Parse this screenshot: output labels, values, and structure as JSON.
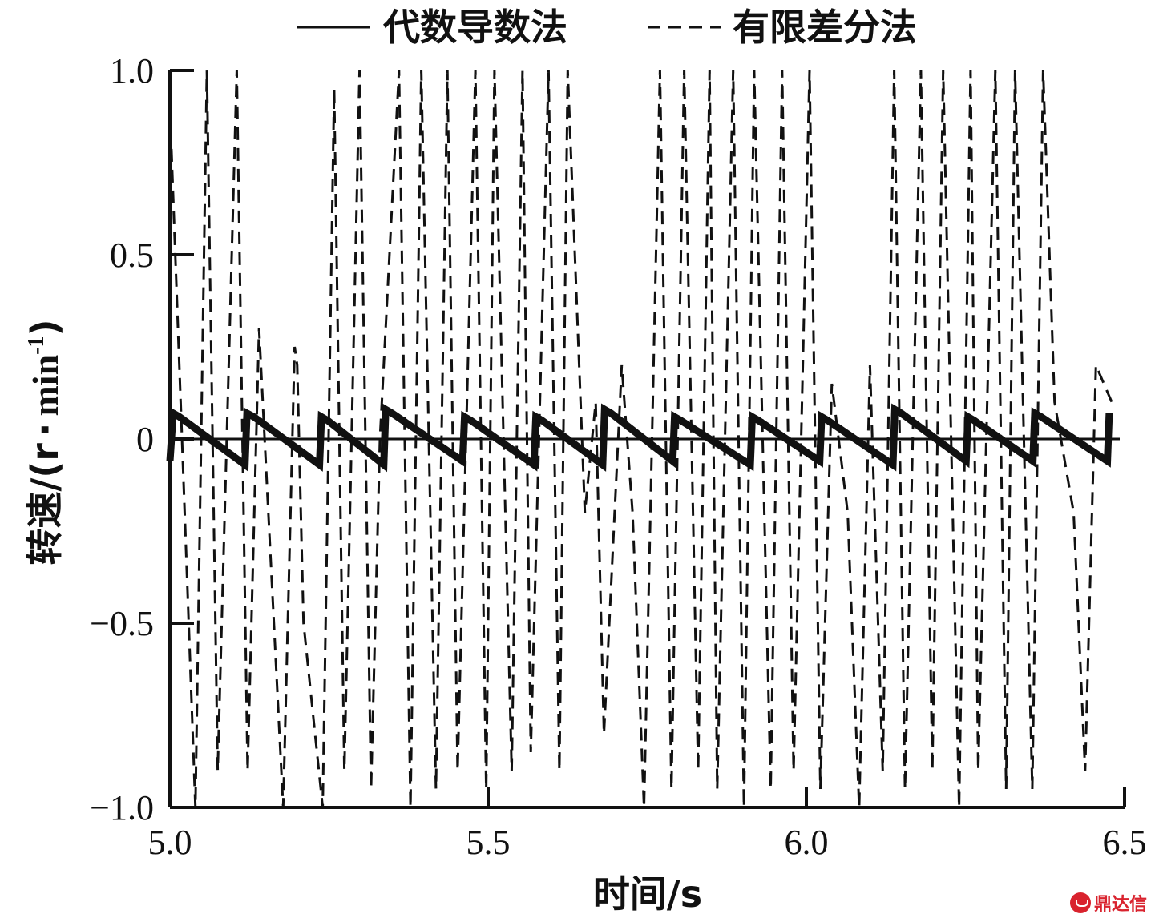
{
  "chart_data": {
    "type": "line",
    "title": "",
    "xlabel": "时间/s",
    "ylabel": "转速/(r·min⁻¹)",
    "ylabel_main": "转速/(r",
    "ylabel_dot": "·",
    "ylabel_unit": "min",
    "ylabel_exp": "-1",
    "ylabel_close": ")",
    "xlim": [
      5.0,
      6.5
    ],
    "ylim": [
      -1.0,
      1.0
    ],
    "x_ticks": [
      "5.0",
      "5.5",
      "6.0",
      "6.5"
    ],
    "y_ticks": [
      "1.0",
      "0.5",
      "0",
      "−0.5",
      "−1.0"
    ],
    "x_tick_values": [
      5.0,
      5.5,
      6.0,
      6.5
    ],
    "y_tick_values": [
      1.0,
      0.5,
      0,
      -0.5,
      -1.0
    ],
    "grid": false,
    "legend_position": "top",
    "zero_line": true,
    "series": [
      {
        "name": "代数导数法",
        "style": "solid",
        "x": [
          5.0,
          5.005,
          5.015,
          5.118,
          5.121,
          5.132,
          5.235,
          5.238,
          5.248,
          5.336,
          5.339,
          5.349,
          5.46,
          5.463,
          5.473,
          5.572,
          5.575,
          5.585,
          5.68,
          5.683,
          5.693,
          5.79,
          5.793,
          5.803,
          5.912,
          5.915,
          5.925,
          6.021,
          6.024,
          6.034,
          6.136,
          6.139,
          6.149,
          6.251,
          6.254,
          6.264,
          6.356,
          6.359,
          6.369,
          6.473,
          6.476
        ],
        "values": [
          -0.06,
          0.07,
          0.06,
          -0.07,
          0.07,
          0.06,
          -0.07,
          0.06,
          0.05,
          -0.07,
          0.08,
          0.07,
          -0.06,
          0.06,
          0.05,
          -0.07,
          0.06,
          0.05,
          -0.07,
          0.08,
          0.07,
          -0.06,
          0.06,
          0.05,
          -0.07,
          0.06,
          0.05,
          -0.06,
          0.06,
          0.05,
          -0.07,
          0.08,
          0.07,
          -0.06,
          0.06,
          0.05,
          -0.06,
          0.07,
          0.06,
          -0.06,
          0.07
        ]
      },
      {
        "name": "有限差分法",
        "style": "dashed",
        "x": [
          5.0,
          5.04,
          5.058,
          5.075,
          5.105,
          5.122,
          5.14,
          5.178,
          5.196,
          5.2,
          5.21,
          5.24,
          5.258,
          5.274,
          5.298,
          5.316,
          5.33,
          5.36,
          5.378,
          5.395,
          5.418,
          5.436,
          5.452,
          5.48,
          5.497,
          5.51,
          5.537,
          5.554,
          5.567,
          5.595,
          5.612,
          5.625,
          5.652,
          5.669,
          5.682,
          5.71,
          5.727,
          5.745,
          5.77,
          5.788,
          5.808,
          5.83,
          5.848,
          5.86,
          5.885,
          5.902,
          5.918,
          5.944,
          5.962,
          5.98,
          6.005,
          6.022,
          6.04,
          6.065,
          6.083,
          6.1,
          6.12,
          6.138,
          6.155,
          6.18,
          6.198,
          6.215,
          6.24,
          6.258,
          6.27,
          6.297,
          6.314,
          6.328,
          6.355,
          6.372,
          6.39,
          6.42,
          6.438,
          6.455,
          6.48
        ],
        "values": [
          0.9,
          -1.0,
          1.0,
          -0.9,
          1.0,
          -0.9,
          0.3,
          -1.0,
          0.25,
          0.2,
          -0.5,
          -1.0,
          0.95,
          -0.9,
          1.0,
          -0.95,
          0.0,
          1.0,
          -1.0,
          1.0,
          -0.95,
          1.0,
          -0.9,
          1.0,
          -0.95,
          1.0,
          -0.9,
          1.0,
          -0.85,
          1.0,
          -0.9,
          1.0,
          -0.2,
          0.1,
          -0.8,
          0.2,
          -0.2,
          -1.0,
          1.0,
          -0.95,
          1.0,
          -0.9,
          1.0,
          -0.95,
          1.0,
          -1.0,
          1.0,
          -0.95,
          1.0,
          -0.9,
          1.0,
          -0.95,
          0.15,
          -0.2,
          -1.0,
          0.2,
          -0.9,
          1.0,
          -0.95,
          1.0,
          -0.9,
          1.0,
          -1.0,
          1.0,
          -0.9,
          1.0,
          -0.95,
          1.0,
          -0.95,
          1.0,
          0.1,
          -0.2,
          -0.9,
          0.2,
          0.1
        ]
      }
    ]
  },
  "legend": {
    "solid_label": "代数导数法",
    "dashed_label": "有限差分法"
  },
  "watermark": {
    "text": "鼎达信",
    "icon": "red-logo-icon"
  }
}
